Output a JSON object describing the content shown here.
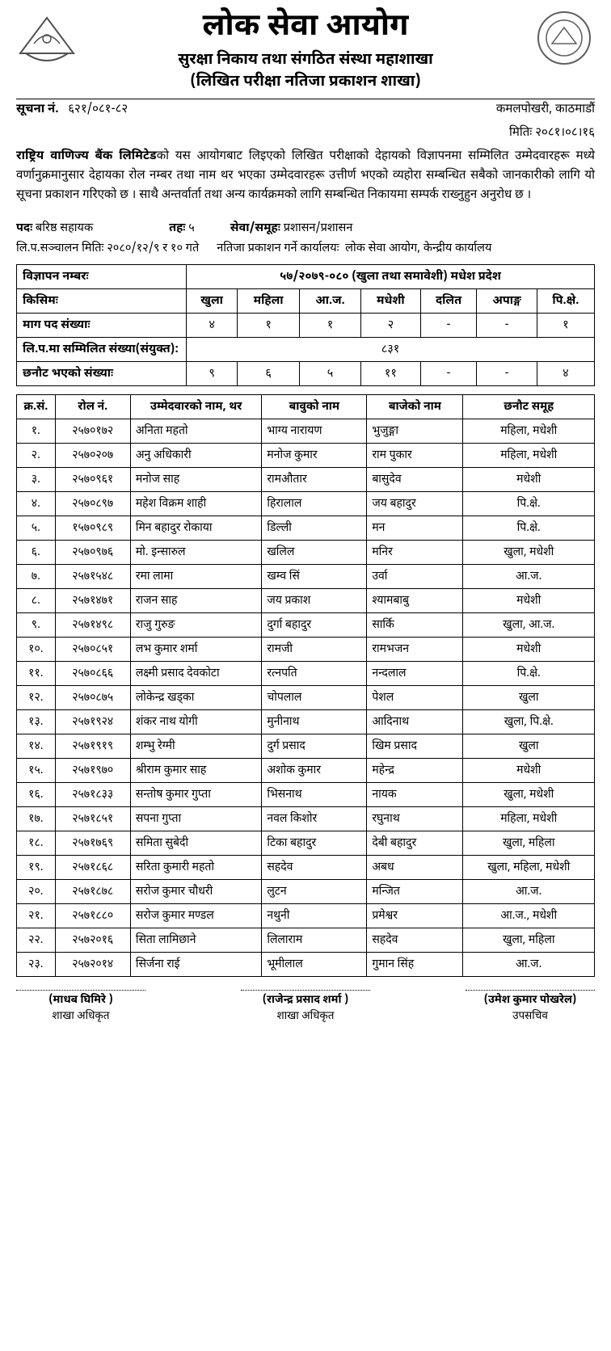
{
  "header": {
    "main_title": "लोक सेवा आयोग",
    "sub_title1": "सुरक्षा निकाय तथा संगठित संस्था महाशाखा",
    "sub_title2": "(लिखित परीक्षा नतिजा प्रकाशन शाखा)",
    "notice_label": "सूचना नं.",
    "notice_no": "६२१/०८१-८२",
    "location": "कमलपोखरी, काठमाडौं",
    "date_label": "मितिः",
    "date": "२०८१।०८।१६"
  },
  "body_html_prefix": "राष्ट्रिय वाणिज्य बैंक लिमिटेड",
  "body_rest": "को यस आयोगबाट लिइएको लिखित परीक्षाको देहायको विज्ञापनमा सम्मिलित उम्मेदवारहरू मध्ये वर्णानुक्रमानुसार देहायका रोल नम्बर तथा नाम थर भएका उम्मेदवारहरू उत्तीर्ण भएको व्यहोरा सम्बन्धित सबैको जानकारीको लागि यो सूचना प्रकाशन गरिएको छ । साथै अन्तर्वार्ता तथा अन्य कार्यक्रमको लागि सम्बन्धित निकायमा सम्पर्क राख्नुहुन अनुरोध छ ।",
  "info": {
    "post_lbl": "पदः",
    "post_val": "बरिष्ठ सहायक",
    "level_lbl": "तहः",
    "level_val": "५",
    "service_lbl": "सेवा/समूहः",
    "service_val": "प्रशासन/प्रशासन",
    "exam_date_lbl": "लि.प.सञ्चालन मितिः",
    "exam_date_val": "२०८०/१२/९ र १० गते",
    "publish_office_lbl": "नतिजा प्रकाशन गर्ने कार्यालयः",
    "publish_office_val": "लोक सेवा आयोग, केन्द्रीय कार्यालय"
  },
  "summary": {
    "adv_lbl": "विज्ञापन नम्बरः",
    "adv_val": "५७/२०७९-०८० (खुला तथा समावेशी) मधेश प्रदेश",
    "type_lbl": "किसिमः",
    "cols": [
      "खुला",
      "महिला",
      "आ.ज.",
      "मधेशी",
      "दलित",
      "अपाङ्ग",
      "पि.क्षे."
    ],
    "demand_lbl": "माग पद संख्याः",
    "demand": [
      "४",
      "१",
      "१",
      "२",
      "-",
      "-",
      "१"
    ],
    "appeared_lbl": "लि.प.मा सम्मिलित संख्या(संयुक्त):",
    "appeared_val": "८३१",
    "selected_lbl": "छनौट भएको संख्याः",
    "selected": [
      "९",
      "६",
      "५",
      "११",
      "-",
      "-",
      "४"
    ]
  },
  "results": {
    "headers": [
      "क्र.सं.",
      "रोल नं.",
      "उम्मेदवारको नाम, थर",
      "बावुको नाम",
      "बाजेको नाम",
      "छनौट समूह"
    ],
    "rows": [
      [
        "१.",
        "२५७०१७२",
        "अनिता महतो",
        "भाग्य नारायण",
        "भुजुङ्गा",
        "महिला, मधेशी"
      ],
      [
        "२.",
        "२५७०२०७",
        "अनु अधिकारी",
        "मनोज कुमार",
        "राम पुकार",
        "महिला, मधेशी"
      ],
      [
        "३.",
        "२५७०९६१",
        "मनोज साह",
        "रामऔतार",
        "बासुदेव",
        "मधेशी"
      ],
      [
        "४.",
        "२५७०८९७",
        "महेश विक्रम शाही",
        "हिरालाल",
        "जय बहादुर",
        "पि.क्षे."
      ],
      [
        "५.",
        "१५७०९८९",
        "मिन बहादुर रोकाया",
        "डिल्ली",
        "मन",
        "पि.क्षे."
      ],
      [
        "६.",
        "२५७०९७६",
        "मो. इन्सारुल",
        "खलिल",
        "मनिर",
        "खुला, मधेशी"
      ],
      [
        "७.",
        "२५७१५४८",
        "रमा लामा",
        "खम्व सिं",
        "उर्वा",
        "आ.ज."
      ],
      [
        "८.",
        "२५७१४७१",
        "राजन साह",
        "जय प्रकाश",
        "श्यामबाबु",
        "मधेशी"
      ],
      [
        "९.",
        "२५७१४९८",
        "राजु गुरुङ",
        "दुर्गा बहादुर",
        "सार्कि",
        "खुला, आ.ज."
      ],
      [
        "१०.",
        "२५७०८५१",
        "लभ कुमार शर्मा",
        "रामजी",
        "रामभजन",
        "मधेशी"
      ],
      [
        "११.",
        "२५७०८६६",
        "लक्ष्मी प्रसाद देवकोटा",
        "रत्नपति",
        "नन्दलाल",
        "पि.क्षे."
      ],
      [
        "१२.",
        "२५७०८७५",
        "लोकेन्द्र खड्का",
        "चोपलाल",
        "पेशल",
        "खुला"
      ],
      [
        "१३.",
        "२५७१९२४",
        "शंकर नाथ योगी",
        "मुनीनाथ",
        "आदिनाथ",
        "खुला, पि.क्षे."
      ],
      [
        "१४.",
        "२५७१९१९",
        "शम्भु रेग्मी",
        "दुर्ग प्रसाद",
        "खिम प्रसाद",
        "खुला"
      ],
      [
        "१५.",
        "२५७१९७०",
        "श्रीराम कुमार साह",
        "अशोक कुमार",
        "महेन्द्र",
        "मधेशी"
      ],
      [
        "१६.",
        "२५७१८३३",
        "सन्तोष कुमार गुप्ता",
        "भिसनाथ",
        "नायक",
        "खुला, मधेशी"
      ],
      [
        "१७.",
        "२५७१८५१",
        "सपना गुप्ता",
        "नवल किशोर",
        "रघुनाथ",
        "महिला, मधेशी"
      ],
      [
        "१८.",
        "२५७१७६९",
        "समिता सुबेदी",
        "टिका बहादुर",
        "देबी बहादुर",
        "खुला, महिला"
      ],
      [
        "१९.",
        "२५७१८६८",
        "सरिता कुमारी महतो",
        "सहदेव",
        "अबध",
        "खुला, महिला, मधेशी"
      ],
      [
        "२०.",
        "२५७१८७८",
        "सरोज कुमार चौधरी",
        "लुटन",
        "मन्जित",
        "आ.ज."
      ],
      [
        "२१.",
        "२५७१८८०",
        "सरोज कुमार मण्डल",
        "नथुनी",
        "प्रमेश्वर",
        "आ.ज., मधेशी"
      ],
      [
        "२२.",
        "२५७२०१६",
        "सिता लामिछाने",
        "लिलाराम",
        "सहदेव",
        "खुला, महिला"
      ],
      [
        "२३.",
        "२५७२०१४",
        "सिर्जना राई",
        "भूमीलाल",
        "गुमान सिंह",
        "आ.ज."
      ]
    ]
  },
  "signatures": [
    {
      "name": "(माधब घिमिरे )",
      "post": "शाखा अधिकृत"
    },
    {
      "name": "(राजेन्द्र प्रसाद शर्मा )",
      "post": "शाखा अधिकृत"
    },
    {
      "name": "(उमेश कुमार पोखरेल)",
      "post": "उपसचिव"
    }
  ]
}
